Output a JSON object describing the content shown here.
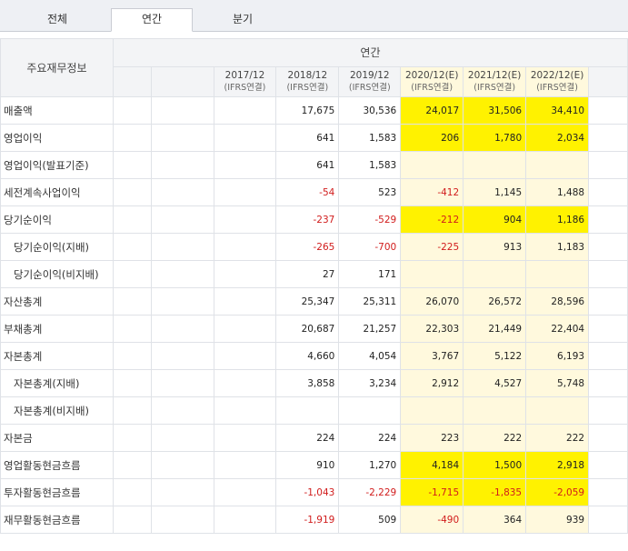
{
  "tabs": [
    {
      "label": "전체",
      "active": false
    },
    {
      "label": "연간",
      "active": true
    },
    {
      "label": "분기",
      "active": false
    }
  ],
  "table": {
    "corner_label": "주요재무정보",
    "group_label": "연간",
    "years": [
      {
        "year": "2017/12",
        "basis": "(IFRS연결)",
        "estimate": false
      },
      {
        "year": "2018/12",
        "basis": "(IFRS연결)",
        "estimate": false
      },
      {
        "year": "2019/12",
        "basis": "(IFRS연결)",
        "estimate": false
      },
      {
        "year": "2020/12(E)",
        "basis": "(IFRS연결)",
        "estimate": true
      },
      {
        "year": "2021/12(E)",
        "basis": "(IFRS연결)",
        "estimate": true
      },
      {
        "year": "2022/12(E)",
        "basis": "(IFRS연결)",
        "estimate": true
      }
    ],
    "rows": [
      {
        "label": "매출액",
        "sub": false,
        "values": [
          "",
          "17,675",
          "30,536",
          "24,017",
          "31,506",
          "34,410"
        ],
        "highlight": true
      },
      {
        "label": "영업이익",
        "sub": false,
        "values": [
          "",
          "641",
          "1,583",
          "206",
          "1,780",
          "2,034"
        ],
        "highlight": true
      },
      {
        "label": "영업이익(발표기준)",
        "sub": false,
        "values": [
          "",
          "641",
          "1,583",
          "",
          "",
          ""
        ],
        "highlight": false
      },
      {
        "label": "세전계속사업이익",
        "sub": false,
        "values": [
          "",
          "-54",
          "523",
          "-412",
          "1,145",
          "1,488"
        ],
        "highlight": false
      },
      {
        "label": "당기순이익",
        "sub": false,
        "values": [
          "",
          "-237",
          "-529",
          "-212",
          "904",
          "1,186"
        ],
        "highlight": true
      },
      {
        "label": "당기순이익(지배)",
        "sub": true,
        "values": [
          "",
          "-265",
          "-700",
          "-225",
          "913",
          "1,183"
        ],
        "highlight": false
      },
      {
        "label": "당기순이익(비지배)",
        "sub": true,
        "values": [
          "",
          "27",
          "171",
          "",
          "",
          ""
        ],
        "highlight": false
      },
      {
        "label": "자산총계",
        "sub": false,
        "values": [
          "",
          "25,347",
          "25,311",
          "26,070",
          "26,572",
          "28,596"
        ],
        "highlight": false
      },
      {
        "label": "부채총계",
        "sub": false,
        "values": [
          "",
          "20,687",
          "21,257",
          "22,303",
          "21,449",
          "22,404"
        ],
        "highlight": false
      },
      {
        "label": "자본총계",
        "sub": false,
        "values": [
          "",
          "4,660",
          "4,054",
          "3,767",
          "5,122",
          "6,193"
        ],
        "highlight": false
      },
      {
        "label": "자본총계(지배)",
        "sub": true,
        "values": [
          "",
          "3,858",
          "3,234",
          "2,912",
          "4,527",
          "5,748"
        ],
        "highlight": false
      },
      {
        "label": "자본총계(비지배)",
        "sub": true,
        "values": [
          "",
          "",
          "",
          "",
          "",
          ""
        ],
        "highlight": false
      },
      {
        "label": "자본금",
        "sub": false,
        "values": [
          "",
          "224",
          "224",
          "223",
          "222",
          "222"
        ],
        "highlight": false
      },
      {
        "label": "영업활동현금흐름",
        "sub": false,
        "values": [
          "",
          "910",
          "1,270",
          "4,184",
          "1,500",
          "2,918"
        ],
        "highlight": true
      },
      {
        "label": "투자활동현금흐름",
        "sub": false,
        "values": [
          "",
          "-1,043",
          "-2,229",
          "-1,715",
          "-1,835",
          "-2,059"
        ],
        "highlight": true
      },
      {
        "label": "재무활동현금흐름",
        "sub": false,
        "values": [
          "",
          "-1,919",
          "509",
          "-490",
          "364",
          "939"
        ],
        "highlight": false
      }
    ]
  },
  "colors": {
    "highlight": "#fff200",
    "estimate_bg": "#fff9dd",
    "negative": "#d11c1c"
  }
}
